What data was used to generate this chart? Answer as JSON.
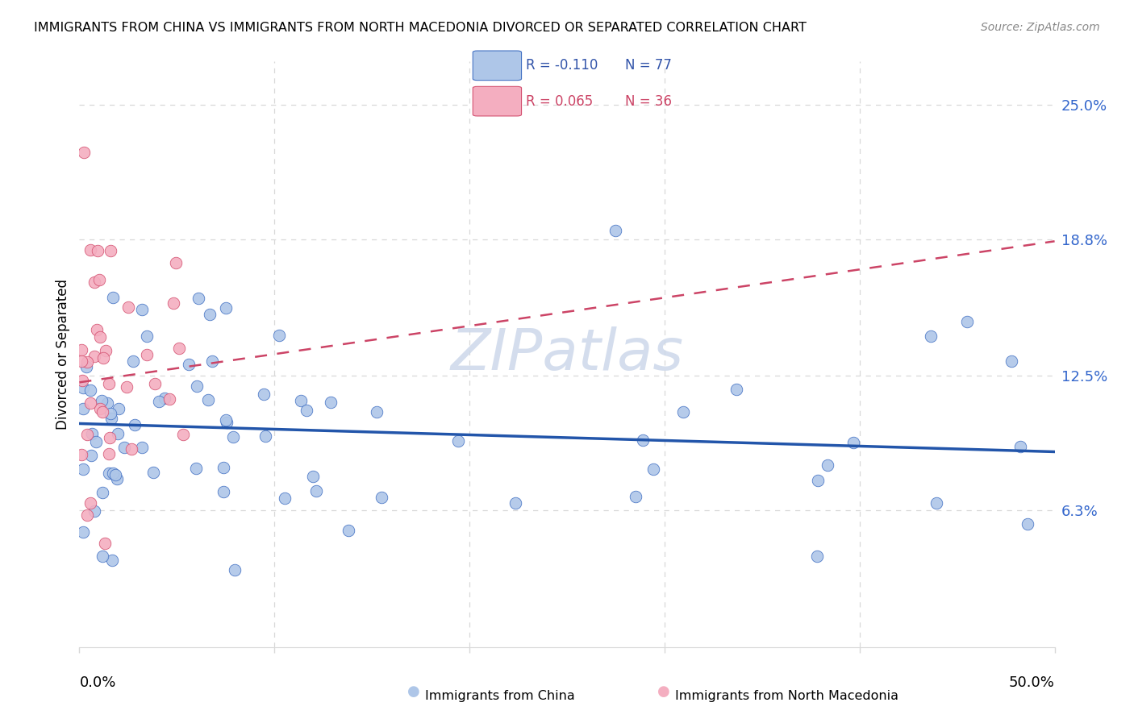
{
  "title": "IMMIGRANTS FROM CHINA VS IMMIGRANTS FROM NORTH MACEDONIA DIVORCED OR SEPARATED CORRELATION CHART",
  "source": "Source: ZipAtlas.com",
  "ylabel": "Divorced or Separated",
  "ytick_labels": [
    "6.3%",
    "12.5%",
    "18.8%",
    "25.0%"
  ],
  "ytick_values": [
    0.063,
    0.125,
    0.188,
    0.25
  ],
  "xmin": 0.0,
  "xmax": 0.5,
  "ymin": 0.0,
  "ymax": 0.27,
  "blue_fill": "#aec6e8",
  "pink_fill": "#f4aec0",
  "blue_edge": "#4472c4",
  "pink_edge": "#d45070",
  "blue_line_color": "#2255aa",
  "pink_line_color": "#cc4466",
  "grid_color": "#d8d8d8",
  "watermark_text": "ZIPatlas",
  "watermark_color": "#cdd8ea",
  "title_fontsize": 11.5,
  "source_fontsize": 10,
  "axis_label_fontsize": 12,
  "tick_fontsize": 13,
  "blue_line_start_y": 0.103,
  "blue_line_end_y": 0.09,
  "pink_line_start_y": 0.122,
  "pink_line_end_y": 0.187
}
